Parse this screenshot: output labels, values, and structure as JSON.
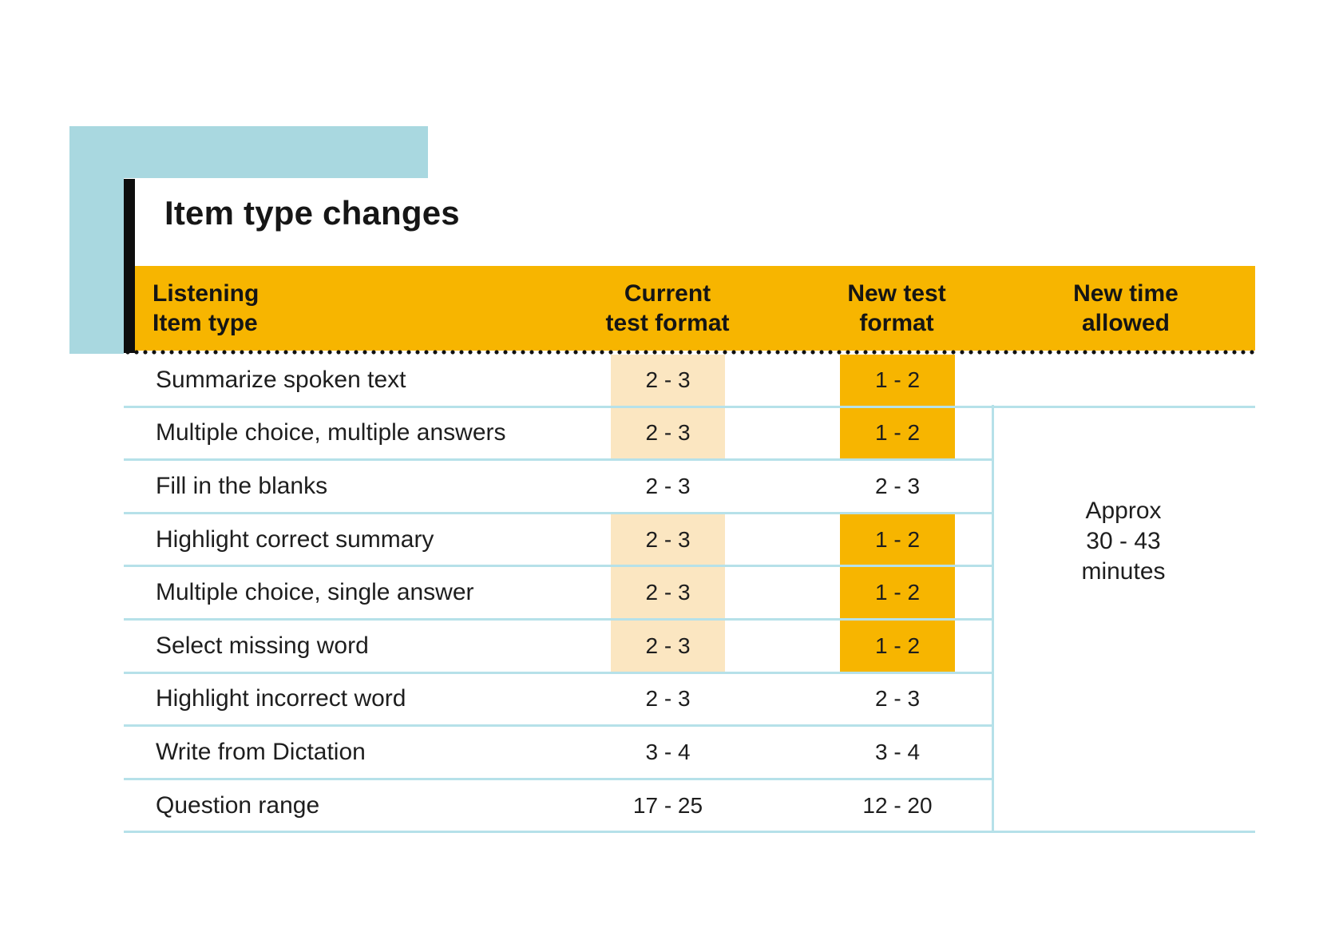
{
  "title": "Item type changes",
  "colors": {
    "amber": "#F7B500",
    "amber_light": "#FBE6C1",
    "blue_decoration": "#A9D8E0",
    "separator_line": "#B6E1E9",
    "dotted_line": "#101010"
  },
  "header": {
    "col1_line1": "Listening",
    "col1_line2": "Item type",
    "col2_line1": "Current",
    "col2_line2": "test format",
    "col3_line1": "New test",
    "col3_line2": "format",
    "col4_line1": "New time",
    "col4_line2": "allowed"
  },
  "rows": [
    {
      "label": "Summarize spoken text",
      "current": "2 - 3",
      "new": "1 - 2",
      "highlight": true
    },
    {
      "label": "Multiple choice, multiple answers",
      "current": "2 - 3",
      "new": "1 - 2",
      "highlight": true
    },
    {
      "label": "Fill in the blanks",
      "current": "2 - 3",
      "new": "2 - 3",
      "highlight": false
    },
    {
      "label": "Highlight correct summary",
      "current": "2 - 3",
      "new": "1 - 2",
      "highlight": true
    },
    {
      "label": "Multiple choice, single answer",
      "current": "2 - 3",
      "new": "1 - 2",
      "highlight": true
    },
    {
      "label": "Select missing word",
      "current": "2 - 3",
      "new": "1 - 2",
      "highlight": true
    },
    {
      "label": "Highlight incorrect word",
      "current": "2 - 3",
      "new": "2 - 3",
      "highlight": false
    },
    {
      "label": "Write from Dictation",
      "current": "3 - 4",
      "new": "3 - 4",
      "highlight": false
    },
    {
      "label": "Question range",
      "current": "17 - 25",
      "new": "12 - 20",
      "highlight": false
    }
  ],
  "time_note": {
    "line1": "Approx",
    "line2": "30 - 43",
    "line3": "minutes"
  },
  "chart_data": {
    "type": "table",
    "title": "Item type changes",
    "columns": [
      "Listening Item type",
      "Current test format",
      "New test format",
      "New time allowed"
    ],
    "rows": [
      [
        "Summarize spoken text",
        "2 - 3",
        "1 - 2",
        ""
      ],
      [
        "Multiple choice, multiple answers",
        "2 - 3",
        "1 - 2",
        "Approx 30 - 43 minutes"
      ],
      [
        "Fill in the blanks",
        "2 - 3",
        "2 - 3",
        "Approx 30 - 43 minutes"
      ],
      [
        "Highlight correct summary",
        "2 - 3",
        "1 - 2",
        "Approx 30 - 43 minutes"
      ],
      [
        "Multiple choice, single answer",
        "2 - 3",
        "1 - 2",
        "Approx 30 - 43 minutes"
      ],
      [
        "Select missing word",
        "2 - 3",
        "1 - 2",
        "Approx 30 - 43 minutes"
      ],
      [
        "Highlight incorrect word",
        "2 - 3",
        "2 - 3",
        "Approx 30 - 43 minutes"
      ],
      [
        "Write from Dictation",
        "3 - 4",
        "3 - 4",
        "Approx 30 - 43 minutes"
      ],
      [
        "Question range",
        "17 - 25",
        "12 - 20",
        "Approx 30 - 43 minutes"
      ]
    ],
    "notes": "Rows with changed counts are highlighted: current format in light amber, new format in amber. 'New time allowed' is a merged cell reading 'Approx 30 - 43 minutes'."
  }
}
